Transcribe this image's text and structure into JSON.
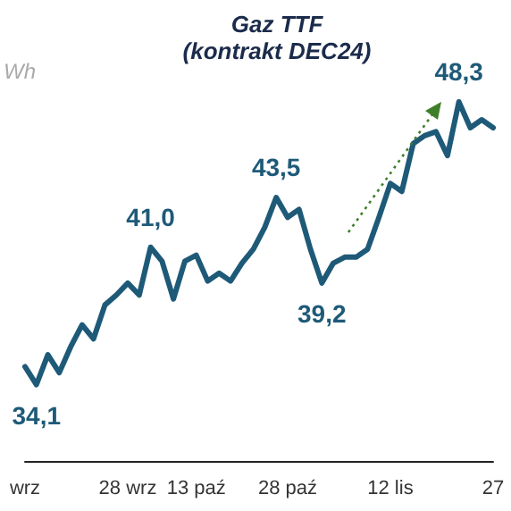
{
  "chart_data": {
    "type": "line",
    "title": "Gaz TTF",
    "subtitle": "(kontrakt DEC24)",
    "ylabel": "Wh",
    "categories": [
      "wrz",
      null,
      null,
      null,
      null,
      null,
      null,
      null,
      null,
      "28 wrz",
      null,
      null,
      null,
      null,
      null,
      "13 paź",
      null,
      null,
      null,
      null,
      null,
      null,
      null,
      "28 paź",
      null,
      null,
      null,
      null,
      null,
      null,
      null,
      null,
      "12 lis",
      null,
      null,
      null,
      null,
      null,
      null,
      null,
      null,
      "27"
    ],
    "series": [
      {
        "color": "#1e5a78",
        "values": [
          35.0,
          34.1,
          35.6,
          34.7,
          36.0,
          37.1,
          36.4,
          38.1,
          38.6,
          39.2,
          38.6,
          41.0,
          40.3,
          38.4,
          40.3,
          40.6,
          39.3,
          39.7,
          39.3,
          40.2,
          40.9,
          42.0,
          43.5,
          42.5,
          42.9,
          40.9,
          39.2,
          40.2,
          40.5,
          40.5,
          40.9,
          42.5,
          44.2,
          43.8,
          46.2,
          46.6,
          46.8,
          45.6,
          48.3,
          47.0,
          47.4,
          47.0
        ],
        "value_labels": [
          null,
          "34,1",
          null,
          null,
          null,
          null,
          null,
          null,
          null,
          null,
          null,
          "41,0",
          null,
          null,
          null,
          null,
          null,
          null,
          null,
          null,
          null,
          null,
          "43,5",
          null,
          null,
          null,
          "39,2",
          null,
          null,
          null,
          null,
          null,
          null,
          null,
          null,
          null,
          null,
          null,
          "48,3",
          null,
          null,
          null
        ]
      }
    ],
    "tick_labels": "x",
    "grid": false,
    "marker": "none",
    "line_style": "solid"
  }
}
